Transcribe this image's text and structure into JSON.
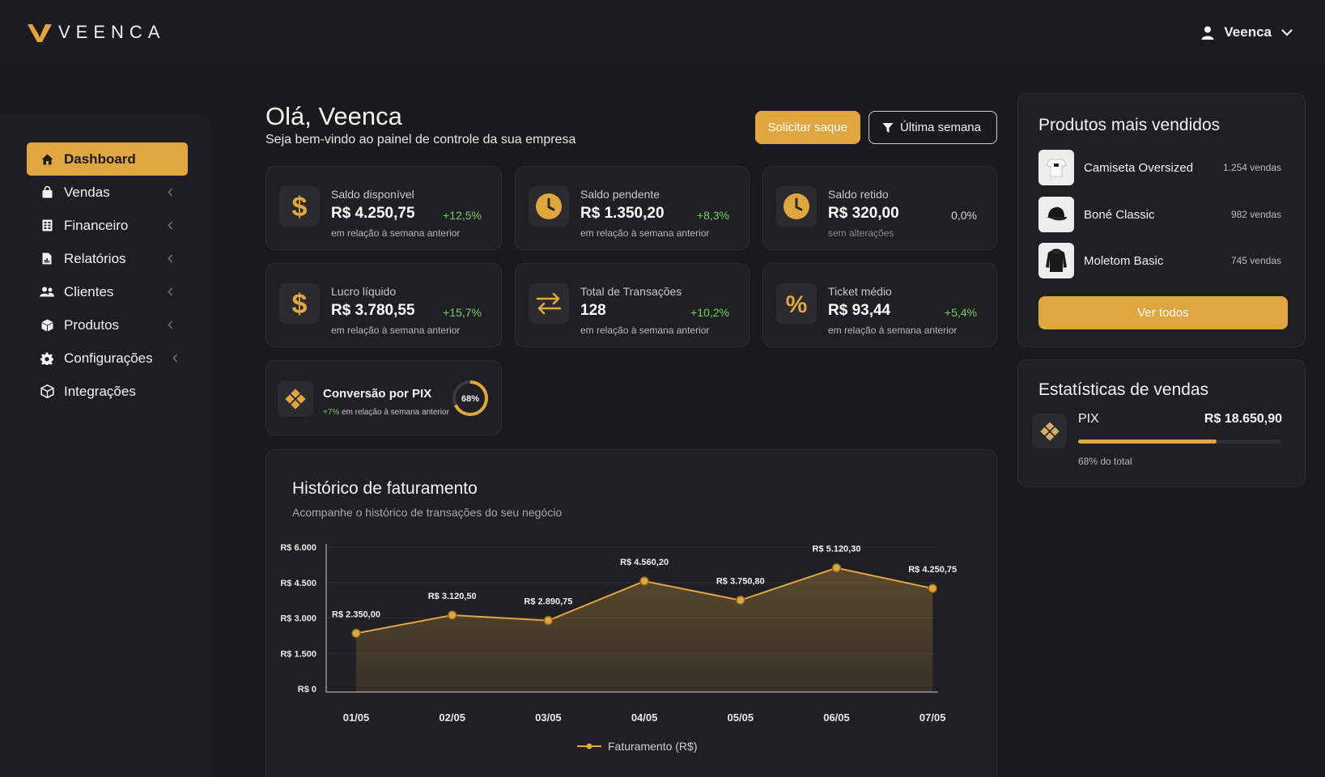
{
  "brand": {
    "name": "VEENCA"
  },
  "user": {
    "name": "Veenca"
  },
  "sidebar": {
    "items": [
      {
        "label": "Dashboard",
        "active": true
      },
      {
        "label": "Vendas",
        "has_submenu": true
      },
      {
        "label": "Financeiro",
        "has_submenu": true
      },
      {
        "label": "Relatórios",
        "has_submenu": true
      },
      {
        "label": "Clientes",
        "has_submenu": true
      },
      {
        "label": "Produtos",
        "has_submenu": true
      },
      {
        "label": "Configurações",
        "has_submenu": true
      },
      {
        "label": "Integrações",
        "has_submenu": false
      }
    ]
  },
  "header": {
    "title": "Olá, Veenca",
    "subtitle": "Seja bem-vindo ao painel de controle da sua empresa",
    "withdraw_label": "Solicitar saque",
    "filter_label": "Última semana"
  },
  "stats": [
    {
      "label": "Saldo disponível",
      "value": "R$ 4.250,75",
      "change": "+12,5%",
      "note": "em relação à semana anterior",
      "icon": "dollar-icon"
    },
    {
      "label": "Saldo pendente",
      "value": "R$ 1.350,20",
      "change": "+8,3%",
      "note": "em relação à semana anterior",
      "icon": "clock-icon"
    },
    {
      "label": "Saldo retido",
      "value": "R$ 320,00",
      "change": "0,0%",
      "note": "sem alterações",
      "icon": "clock-icon"
    },
    {
      "label": "Lucro líquido",
      "value": "R$ 3.780,55",
      "change": "+15,7%",
      "note": "em relação à semana anterior",
      "icon": "dollar-icon"
    },
    {
      "label": "Total de Transações",
      "value": "128",
      "change": "+10,2%",
      "note": "em relação à semana anterior",
      "icon": "arrows-swap-icon"
    },
    {
      "label": "Ticket médio",
      "value": "R$ 93,44",
      "change": "+5,4%",
      "note": "em relação à semana anterior",
      "icon": "percent-icon"
    }
  ],
  "pix_conversion": {
    "label": "Conversão por PIX",
    "change": "+7%",
    "note": "em relação à semana anterior",
    "percent_label": "68%",
    "percent": 68
  },
  "top_products": {
    "title": "Produtos mais vendidos",
    "items": [
      {
        "name": "Camiseta Oversized",
        "sales": "1.254 vendas"
      },
      {
        "name": "Boné Classic",
        "sales": "982 vendas"
      },
      {
        "name": "Moletom Basic",
        "sales": "745 vendas"
      }
    ],
    "see_all_label": "Ver todos"
  },
  "sales_stats": {
    "title": "Estatísticas de vendas",
    "method": "PIX",
    "amount": "R$ 18.650,90",
    "share_label": "68% do total",
    "share": 68
  },
  "revenue_history": {
    "title": "Histórico de faturamento",
    "subtitle": "Acompanhe o histórico de transações do seu negócio"
  },
  "colors": {
    "accent": "#e0a640",
    "background": "#1a1a1d",
    "card": "#202024",
    "positive": "#6fcf5a"
  },
  "chart_data": {
    "type": "area",
    "categories": [
      "01/05",
      "02/05",
      "03/05",
      "04/05",
      "05/05",
      "06/05",
      "07/05"
    ],
    "series": [
      {
        "name": "Faturamento (R$)",
        "values": [
          2350.0,
          3120.5,
          2890.75,
          4560.2,
          3750.8,
          5120.3,
          4250.75
        ],
        "labels": [
          "R$ 2.350,00",
          "R$ 3.120,50",
          "R$ 2.890,75",
          "R$ 4.560,20",
          "R$ 3.750,80",
          "R$ 5.120,30",
          "R$ 4.250,75"
        ]
      }
    ],
    "y_ticks": [
      "R$ 0",
      "R$ 1.500",
      "R$ 3.000",
      "R$ 4.500",
      "R$ 6.000"
    ],
    "y_tick_values": [
      0,
      1500,
      3000,
      4500,
      6000
    ],
    "ylim": [
      0,
      6000
    ],
    "grid": true,
    "legend_position": "bottom",
    "color": "#e0a640"
  }
}
